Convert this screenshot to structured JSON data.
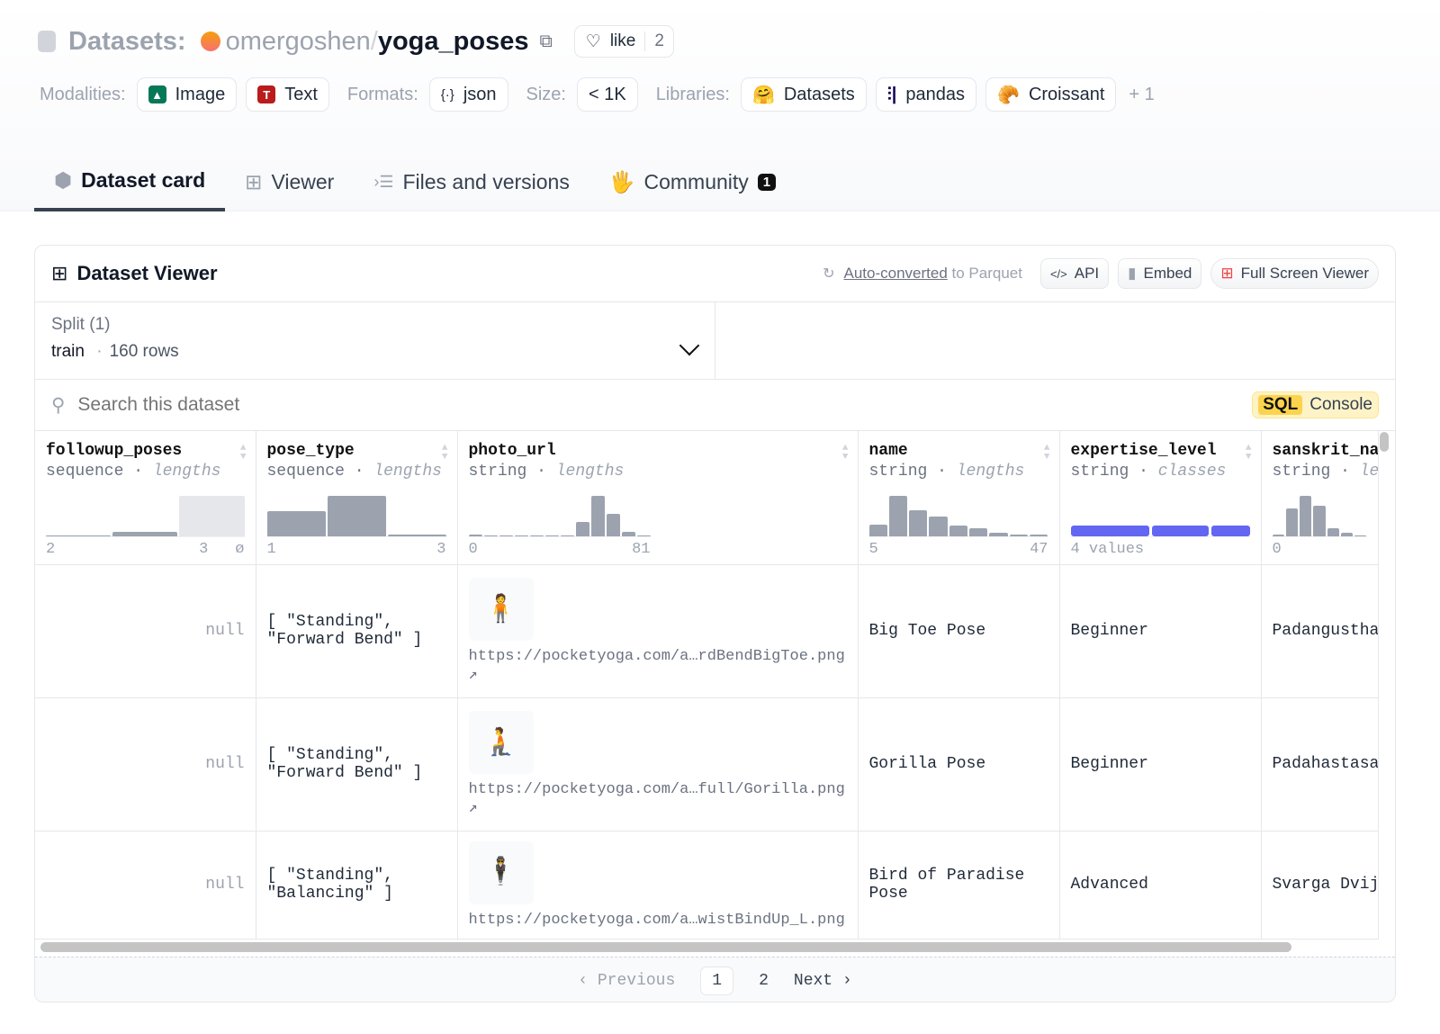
{
  "header": {
    "section": "Datasets:",
    "owner": "omergoshen",
    "separator": "/",
    "repo": "yoga_poses",
    "like_label": "like",
    "like_count": "2"
  },
  "meta": {
    "modalities_label": "Modalities:",
    "modalities": [
      "Image",
      "Text"
    ],
    "formats_label": "Formats:",
    "format": "json",
    "size_label": "Size:",
    "size": "< 1K",
    "libraries_label": "Libraries:",
    "libraries": [
      "Datasets",
      "pandas",
      "Croissant"
    ],
    "more": "+ 1"
  },
  "tabs": [
    {
      "label": "Dataset card",
      "active": true
    },
    {
      "label": "Viewer"
    },
    {
      "label": "Files and versions"
    },
    {
      "label": "Community",
      "badge": "1"
    }
  ],
  "viewer": {
    "title": "Dataset Viewer",
    "auto_link": "Auto-converted",
    "auto_rest": " to Parquet",
    "api": "API",
    "embed": "Embed",
    "fullscreen": "Full Screen Viewer",
    "split_label": "Split (1)",
    "split_value": "train",
    "split_rows": "160 rows",
    "search_placeholder": "Search this dataset",
    "sql": "SQL",
    "console": "Console"
  },
  "columns": [
    {
      "name": "followup_poses",
      "type": "sequence",
      "stat": "lengths",
      "hist": [
        2,
        12,
        100
      ],
      "min": "2",
      "max": "3",
      "extra": "ø"
    },
    {
      "name": "pose_type",
      "type": "sequence",
      "stat": "lengths",
      "hist": [
        62,
        100,
        5
      ],
      "min": "1",
      "max": "3"
    },
    {
      "name": "photo_url",
      "type": "string",
      "stat": "lengths",
      "hist": [
        5,
        0,
        0,
        0,
        0,
        0,
        0,
        35,
        100,
        55,
        12,
        3
      ],
      "min": "0",
      "max": "81"
    },
    {
      "name": "name",
      "type": "string",
      "stat": "lengths",
      "hist": [
        28,
        100,
        65,
        48,
        26,
        20,
        10,
        5,
        5
      ],
      "min": "5",
      "max": "47"
    },
    {
      "name": "expertise_level",
      "type": "string",
      "stat": "classes",
      "classes": [
        45,
        32,
        22
      ],
      "summary": "4 values",
      "color": "#6366f1"
    },
    {
      "name": "sanskrit_na",
      "type": "string",
      "stat": "le",
      "hist": [
        5,
        70,
        100,
        75,
        20,
        8,
        3
      ],
      "min": "0"
    }
  ],
  "rows": [
    {
      "followup": "null",
      "pose_type": "[ \"Standing\",\n\"Forward Bend\" ]",
      "url": "https://pocketyoga.com/a…rdBendBigToe.png",
      "name": "Big Toe Pose",
      "level": "Beginner",
      "sanskrit": "Padangustha"
    },
    {
      "followup": "null",
      "pose_type": "[ \"Standing\",\n\"Forward Bend\" ]",
      "url": "https://pocketyoga.com/a…full/Gorilla.png",
      "name": "Gorilla Pose",
      "level": "Beginner",
      "sanskrit": "Padahastasa"
    },
    {
      "followup": "null",
      "pose_type": "[ \"Standing\",\n\"Balancing\" ]",
      "url": "https://pocketyoga.com/a…wistBindUp_L.png",
      "name": "Bird of Paradise\nPose",
      "level": "Advanced",
      "sanskrit": "Svarga Dvij"
    }
  ],
  "pager": {
    "prev": "Previous",
    "pages": [
      "1",
      "2"
    ],
    "current": "1",
    "next": "Next"
  }
}
